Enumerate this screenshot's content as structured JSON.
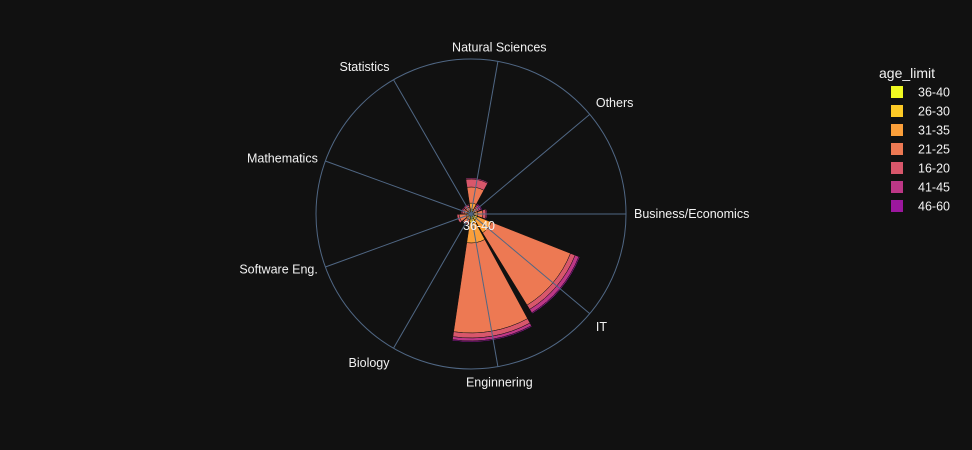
{
  "chart_data": {
    "type": "barpolar",
    "angular_categories": [
      "Business/Economics",
      "Others",
      "Natural Sciences",
      "Statistics",
      "Mathematics",
      "Software Eng.",
      "Biology",
      "Enginnering",
      "IT"
    ],
    "radial_label": "36-40",
    "legend_title": "age_limit",
    "series": [
      {
        "name": "36-40",
        "color": "#f0f921",
        "values": [
          2,
          1,
          3,
          1,
          1,
          1,
          1,
          5,
          4
        ]
      },
      {
        "name": "26-30",
        "color": "#fdca26",
        "values": [
          1,
          1,
          2,
          1,
          1,
          1,
          1,
          4,
          3
        ]
      },
      {
        "name": "31-35",
        "color": "#fb9f3a",
        "values": [
          4,
          2,
          6,
          2,
          2,
          3,
          4,
          20,
          15
        ]
      },
      {
        "name": "21-25",
        "color": "#ed7953",
        "values": [
          5,
          3,
          16,
          3,
          3,
          7,
          4,
          90,
          85
        ]
      },
      {
        "name": "16-20",
        "color": "#d8576b",
        "values": [
          3,
          2,
          8,
          2,
          2,
          2,
          1,
          5,
          5
        ]
      },
      {
        "name": "41-45",
        "color": "#bd3786",
        "values": [
          1,
          2,
          1,
          1,
          1,
          0,
          0,
          3,
          4
        ]
      },
      {
        "name": "46-60",
        "color": "#9c179e",
        "values": [
          0,
          1,
          0,
          0,
          0,
          0,
          0,
          1,
          1
        ]
      }
    ],
    "radial_range": [
      0,
      155
    ],
    "legend_position": "top-right"
  }
}
